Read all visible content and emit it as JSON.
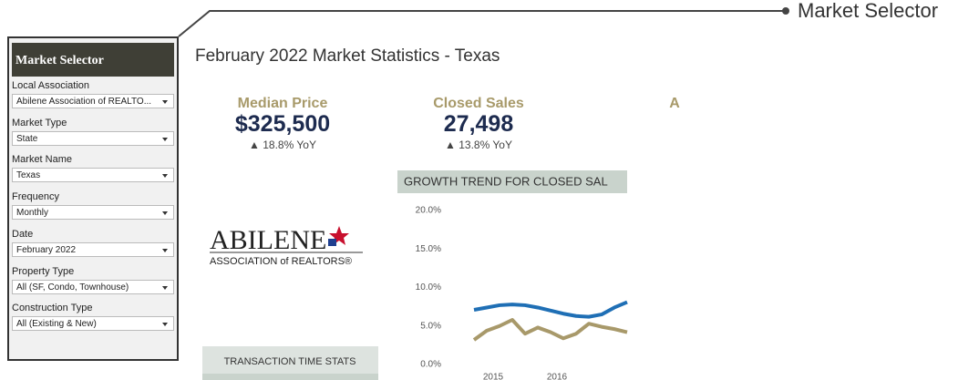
{
  "callout": {
    "label": "Market Selector"
  },
  "sidebar": {
    "title": "Market Selector",
    "fields": [
      {
        "label": "Local Association",
        "value": "Abilene Association of REALTO..."
      },
      {
        "label": "Market Type",
        "value": "State"
      },
      {
        "label": "Market Name",
        "value": "Texas"
      },
      {
        "label": "Frequency",
        "value": "Monthly"
      },
      {
        "label": "Date",
        "value": "February 2022"
      },
      {
        "label": "Property Type",
        "value": "All (SF, Condo, Townhouse)"
      },
      {
        "label": "Construction Type",
        "value": "All (Existing & New)"
      }
    ]
  },
  "main": {
    "title": "February 2022 Market Statistics - Texas",
    "kpis": [
      {
        "label": "Median Price",
        "value": "$325,500",
        "change": "▲ 18.8% YoY"
      },
      {
        "label": "Closed Sales",
        "value": "27,498",
        "change": "▲ 13.8% YoY"
      },
      {
        "label": "A"
      }
    ]
  },
  "logo": {
    "name": "ABILENE",
    "subtitle": "ASSOCIATION of REALTORS®"
  },
  "growth_chart": {
    "type": "line",
    "title": "GROWTH TREND FOR CLOSED SAL",
    "x": [
      2014.7,
      2014.9,
      2015.1,
      2015.3,
      2015.5,
      2015.7,
      2015.9,
      2016.1,
      2016.3,
      2016.5,
      2016.7,
      2016.9,
      2017.1
    ],
    "series": [
      {
        "color": "#1f6fb5",
        "values": [
          7.1,
          7.4,
          7.7,
          7.8,
          7.7,
          7.4,
          7.0,
          6.6,
          6.3,
          6.2,
          6.5,
          7.4,
          8.1
        ]
      },
      {
        "color": "#a8996a",
        "values": [
          3.2,
          4.4,
          5.0,
          5.8,
          4.0,
          4.8,
          4.2,
          3.4,
          4.0,
          5.3,
          4.9,
          4.6,
          4.2
        ]
      }
    ],
    "xlim": [
      2013.9,
      2017.1
    ],
    "xticks": [
      2015,
      2016
    ],
    "ylim": [
      0,
      20
    ],
    "yticks": [
      {
        "value": 0,
        "label": "0.0%"
      },
      {
        "value": 5,
        "label": "5.0%"
      },
      {
        "value": 10,
        "label": "10.0%"
      },
      {
        "value": 15,
        "label": "15.0%"
      },
      {
        "value": 20,
        "label": "20.0%"
      }
    ]
  },
  "transaction": {
    "title": "TRANSACTION TIME STATS"
  }
}
